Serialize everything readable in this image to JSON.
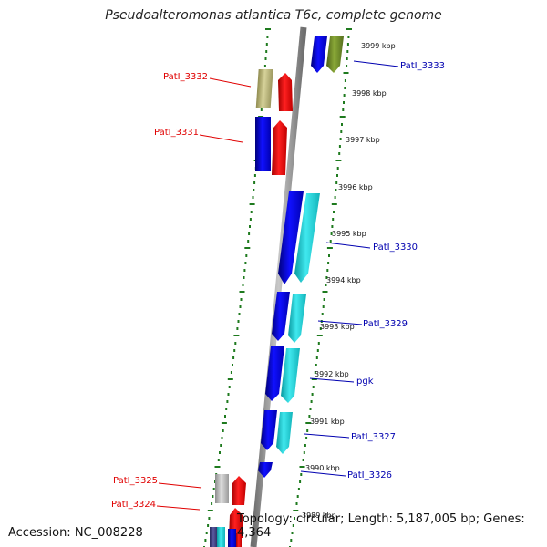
{
  "title": "Pseudoalteromonas atlantica T6c, complete genome",
  "accession": "Accession: NC_008228",
  "topology": "Topology: circular; Length: 5,187,005 bp; Genes: 4,364",
  "ticks": [
    "3999 kbp",
    "3998 kbp",
    "3997 kbp",
    "3996 kbp",
    "3995 kbp",
    "3994 kbp",
    "3993 kbp",
    "3992 kbp",
    "3991 kbp",
    "3990 kbp",
    "3989 kbp"
  ],
  "labels": [
    {
      "text": "PatI_3333",
      "strand": "forward"
    },
    {
      "text": "PatI_3332",
      "strand": "reverse"
    },
    {
      "text": "PatI_3331",
      "strand": "reverse"
    },
    {
      "text": "PatI_3330",
      "strand": "forward"
    },
    {
      "text": "PatI_3329",
      "strand": "forward"
    },
    {
      "text": "pgk",
      "strand": "forward"
    },
    {
      "text": "PatI_3327",
      "strand": "forward"
    },
    {
      "text": "PatI_3326",
      "strand": "forward"
    },
    {
      "text": "PatI_3325",
      "strand": "reverse"
    },
    {
      "text": "PatI_3324",
      "strand": "reverse"
    }
  ],
  "colors": {
    "forward_label": "#0000b0",
    "reverse_label": "#e00000",
    "backbone": "#8c8c8c",
    "dots": "#1e7a1e",
    "cds_blue": "#0a0ae6",
    "cds_cyan": "#1ecfd6",
    "cds_red": "#ee1111",
    "cds_olive": "#6e8a28",
    "cds_khaki": "#b8b478",
    "cds_gray": "#b8b8b8"
  }
}
